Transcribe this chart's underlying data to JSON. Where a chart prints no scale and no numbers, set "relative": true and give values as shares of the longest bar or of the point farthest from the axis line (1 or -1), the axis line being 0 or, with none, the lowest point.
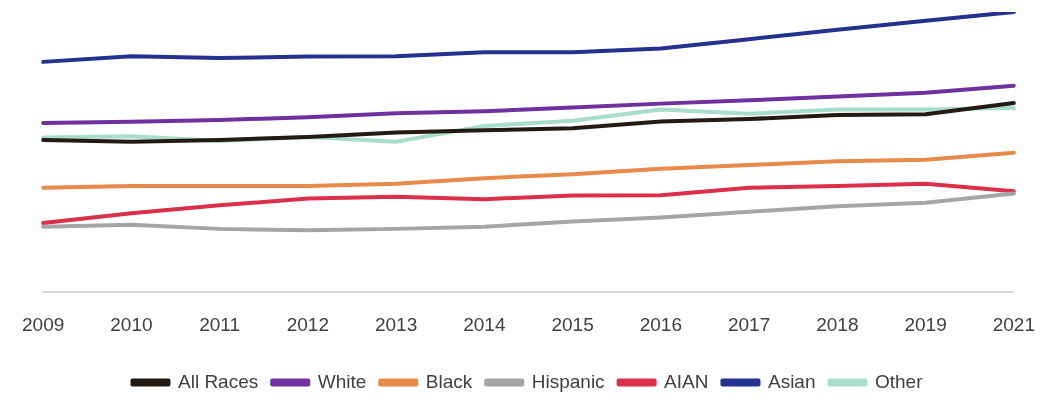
{
  "chart_data": {
    "type": "line",
    "relative": true,
    "legend": "bottom",
    "categories": [
      "2009",
      "2010",
      "2011",
      "2012",
      "2013",
      "2014",
      "2015",
      "2016",
      "2017",
      "2018",
      "2019",
      "2021"
    ],
    "series": [
      {
        "name": "All Races",
        "color": "#231a14",
        "values": [
          0.543,
          0.537,
          0.543,
          0.554,
          0.57,
          0.578,
          0.585,
          0.609,
          0.618,
          0.632,
          0.635,
          0.675
        ]
      },
      {
        "name": "White",
        "color": "#7030a0",
        "values": [
          0.604,
          0.608,
          0.615,
          0.624,
          0.639,
          0.646,
          0.659,
          0.673,
          0.685,
          0.698,
          0.712,
          0.737
        ]
      },
      {
        "name": "Black",
        "color": "#e88a4a",
        "values": [
          0.373,
          0.379,
          0.379,
          0.379,
          0.387,
          0.407,
          0.421,
          0.441,
          0.454,
          0.467,
          0.473,
          0.498
        ]
      },
      {
        "name": "Hispanic",
        "color": "#a5a5a5",
        "values": [
          0.234,
          0.241,
          0.226,
          0.221,
          0.226,
          0.234,
          0.252,
          0.267,
          0.287,
          0.307,
          0.319,
          0.352
        ]
      },
      {
        "name": "AIAN",
        "color": "#dc2f4a",
        "values": [
          0.247,
          0.282,
          0.31,
          0.334,
          0.341,
          0.332,
          0.345,
          0.346,
          0.373,
          0.379,
          0.387,
          0.36
        ]
      },
      {
        "name": "Asian",
        "color": "#24318f",
        "values": [
          0.822,
          0.842,
          0.836,
          0.841,
          0.842,
          0.856,
          0.856,
          0.87,
          0.903,
          0.937,
          0.969,
          1
        ]
      },
      {
        "name": "Other",
        "color": "#a8dccb",
        "values": [
          0.552,
          0.557,
          0.54,
          0.554,
          0.537,
          0.593,
          0.612,
          0.652,
          0.637,
          0.652,
          0.652,
          0.657
        ]
      }
    ]
  }
}
